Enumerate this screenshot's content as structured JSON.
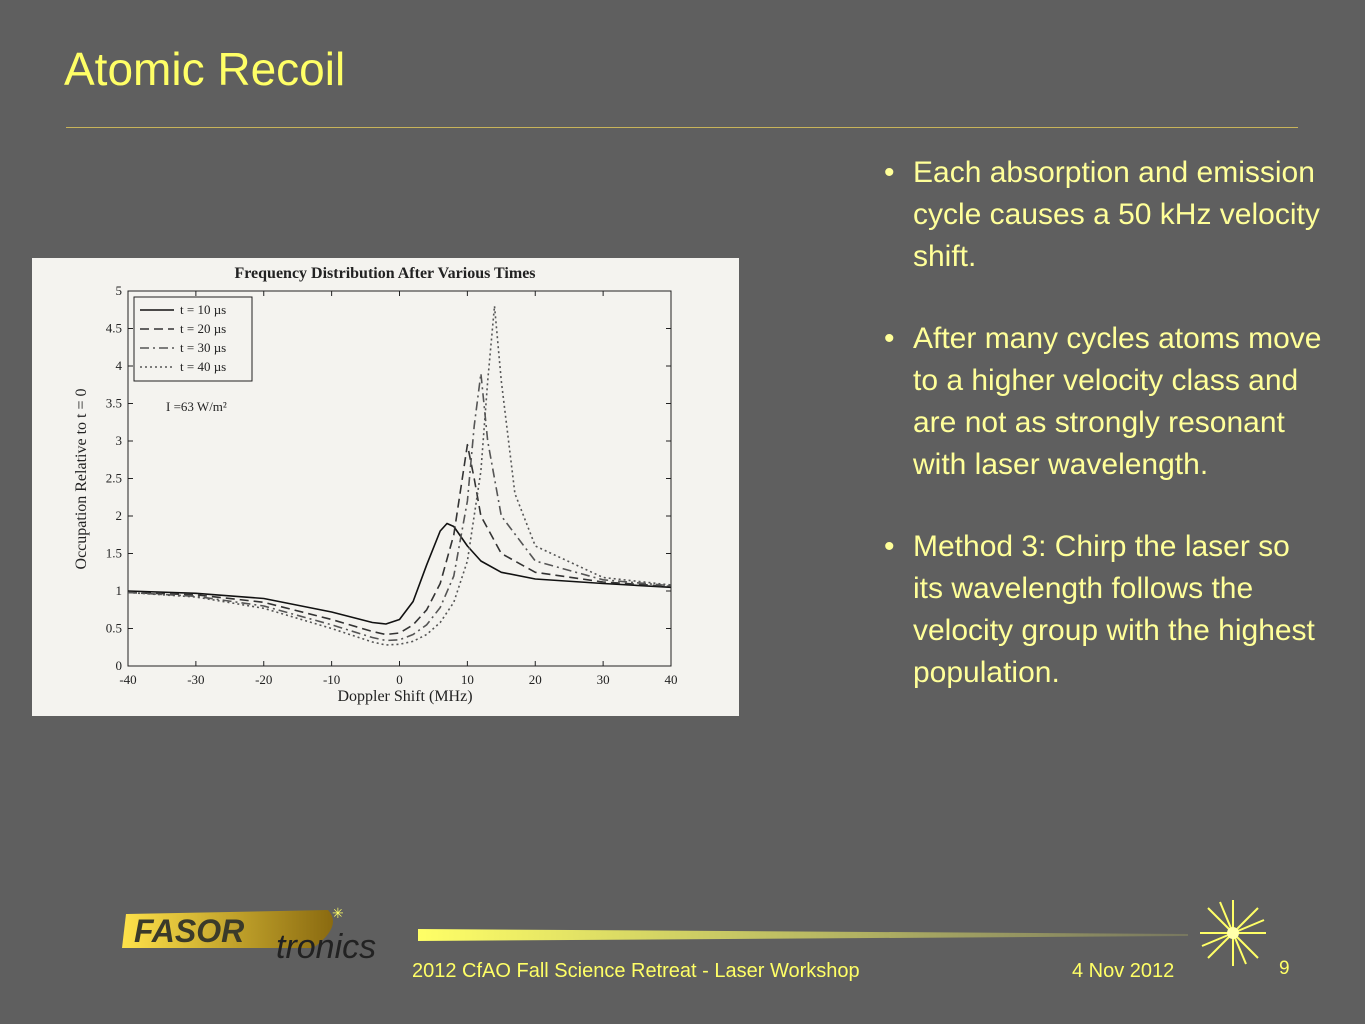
{
  "slide": {
    "title": "Atomic Recoil",
    "bullets": [
      "Each absorption and emission cycle causes a 50 kHz velocity shift.",
      "After many cycles atoms move to a higher velocity class and are not as strongly resonant with laser wavelength.",
      "Method 3: Chirp the laser so its wavelength follows the velocity group with the highest population."
    ],
    "bullet_glyph": "•"
  },
  "footer": {
    "event": "2012 CfAO Fall Science Retreat - Laser Workshop",
    "date": "4 Nov 2012",
    "page_number": "9",
    "logo_word1": "FASOR",
    "logo_word2": "tronics"
  },
  "colors": {
    "background": "#5f5f5f",
    "title": "#ffff66",
    "body_text": "#ffff99",
    "figure_bg": "#f4f3ef"
  },
  "chart_data": {
    "type": "line",
    "title": "Frequency Distribution After Various Times",
    "xlabel": "Doppler Shift (MHz)",
    "ylabel": "Occupation Relative to t = 0",
    "xlim": [
      -40,
      40
    ],
    "ylim": [
      0,
      5
    ],
    "xticks": [
      "-40",
      "-30",
      "-20",
      "-10",
      "0",
      "10",
      "20",
      "30",
      "40"
    ],
    "yticks": [
      "0",
      "0.5",
      "1",
      "1.5",
      "2",
      "2.5",
      "3",
      "3.5",
      "4",
      "4.5",
      "5"
    ],
    "annotation": "I =63 W/m²",
    "legend_position": "top-left",
    "series": [
      {
        "name": "t = 10 µs",
        "style": "solid",
        "x": [
          -40,
          -30,
          -20,
          -10,
          -4,
          -2,
          0,
          2,
          4,
          6,
          7,
          8,
          10,
          12,
          15,
          20,
          30,
          40
        ],
        "y": [
          1.0,
          0.97,
          0.9,
          0.72,
          0.58,
          0.56,
          0.62,
          0.86,
          1.35,
          1.8,
          1.9,
          1.86,
          1.6,
          1.4,
          1.25,
          1.16,
          1.1,
          1.05
        ]
      },
      {
        "name": "t = 20 µs",
        "style": "dashed",
        "x": [
          -40,
          -30,
          -20,
          -10,
          -4,
          -2,
          0,
          2,
          4,
          6,
          8,
          9,
          10,
          11,
          12,
          15,
          20,
          30,
          40
        ],
        "y": [
          0.98,
          0.95,
          0.85,
          0.62,
          0.46,
          0.42,
          0.44,
          0.55,
          0.75,
          1.1,
          1.75,
          2.35,
          2.95,
          2.5,
          2.0,
          1.5,
          1.25,
          1.12,
          1.06
        ]
      },
      {
        "name": "t = 30 µs",
        "style": "dashdot",
        "x": [
          -40,
          -30,
          -20,
          -10,
          -4,
          -2,
          0,
          2,
          4,
          6,
          8,
          10,
          11,
          12,
          13,
          15,
          20,
          30,
          40
        ],
        "y": [
          0.98,
          0.93,
          0.8,
          0.55,
          0.38,
          0.34,
          0.35,
          0.42,
          0.55,
          0.78,
          1.2,
          2.2,
          3.2,
          3.9,
          3.0,
          2.0,
          1.4,
          1.15,
          1.07
        ]
      },
      {
        "name": "t = 40 µs",
        "style": "dotted",
        "x": [
          -40,
          -30,
          -20,
          -10,
          -4,
          -2,
          0,
          2,
          4,
          6,
          8,
          10,
          12,
          13,
          14,
          15,
          17,
          20,
          30,
          40
        ],
        "y": [
          0.98,
          0.92,
          0.77,
          0.5,
          0.32,
          0.28,
          0.29,
          0.33,
          0.42,
          0.58,
          0.85,
          1.4,
          2.6,
          3.8,
          4.8,
          3.8,
          2.3,
          1.6,
          1.18,
          1.08
        ]
      }
    ]
  }
}
